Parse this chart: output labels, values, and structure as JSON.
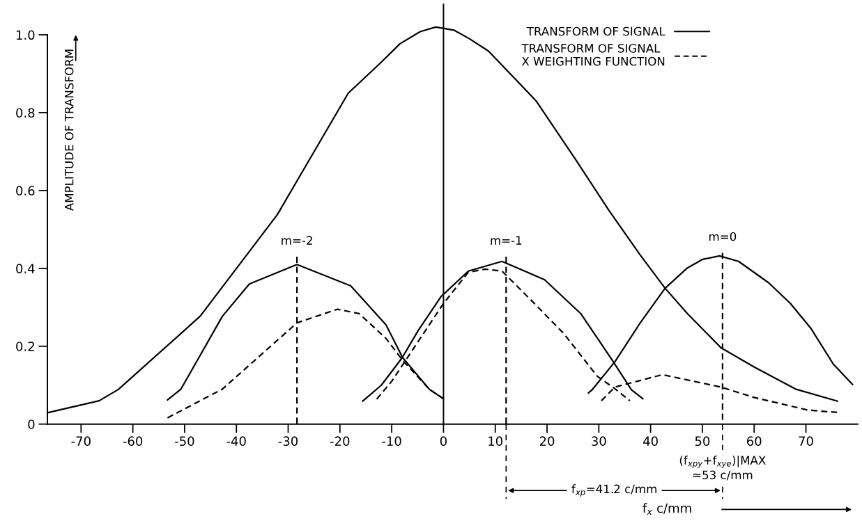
{
  "chart_data": {
    "type": "line",
    "ylabel": "AMPLITUDE OF TRANSFORM",
    "xlabel": "f$_{x}$ c/mm",
    "xlim": [
      -76.5,
      80
    ],
    "ylim": [
      0,
      1.08
    ],
    "xticks": [
      -70,
      -60,
      -50,
      -40,
      -30,
      -20,
      -10,
      0,
      10,
      20,
      30,
      40,
      50,
      60,
      70
    ],
    "yticks": [
      0,
      {
        "value": 0.2,
        "label": "0.2"
      },
      {
        "value": 0.4,
        "label": "0.4"
      },
      {
        "value": 0.6,
        "label": "0.6"
      },
      {
        "value": 0.8,
        "label": "0.8"
      },
      {
        "value": 1.0,
        "label": "1.0"
      }
    ],
    "grid": false,
    "legend": "top right",
    "marker": "none",
    "series": [
      {
        "name": "TRANSFORM OF SIGNAL",
        "color": "#000000",
        "line_style": "solid",
        "x": [
          -76.5,
          -66.5,
          -62.8,
          -47,
          -32.1,
          -18.4,
          -12,
          -8.4,
          -4.5,
          -1.5,
          2,
          5,
          8.7,
          17.9,
          25.5,
          31.9,
          37.9,
          42.8,
          47.1,
          53.6,
          60.1,
          68,
          76.1
        ],
        "values": [
          0.029,
          0.06,
          0.089,
          0.277,
          0.538,
          0.85,
          0.93,
          0.977,
          1.008,
          1.02,
          1.012,
          0.99,
          0.958,
          0.83,
          0.68,
          0.55,
          0.436,
          0.349,
          0.284,
          0.196,
          0.146,
          0.09,
          0.059
        ]
      },
      {
        "name": "TRANSFORM OF SIGNAL\nX WEIGHTING FUNCTION",
        "color": "#000000",
        "line_style": "dashed",
        "x": [
          -53.3,
          -42.7,
          -28.3,
          -20.5,
          -16.3,
          -11.1,
          -7.9,
          -2.7,
          0
        ],
        "values": [
          0.016,
          0.09,
          0.26,
          0.295,
          0.284,
          0.22,
          0.164,
          0.089,
          0.065
        ]
      },
      {
        "color": "#000000",
        "line_style": "solid",
        "x": [
          -53.3,
          -50.7,
          -42.7,
          -37.5,
          -28.3,
          -17.9,
          -11.1,
          -7.9,
          -2.7,
          0
        ],
        "values": [
          0.062,
          0.09,
          0.277,
          0.36,
          0.41,
          0.355,
          0.255,
          0.171,
          0.089,
          0.065
        ]
      },
      {
        "color": "#000000",
        "line_style": "solid",
        "x": [
          -15.6,
          -12,
          -8,
          -4.9,
          -0.5,
          4.8,
          11.3,
          19.5,
          26.5,
          32.4,
          36.3,
          38.5
        ],
        "values": [
          0.059,
          0.1,
          0.17,
          0.24,
          0.327,
          0.393,
          0.418,
          0.371,
          0.284,
          0.168,
          0.088,
          0.065
        ]
      },
      {
        "color": "#000000",
        "line_style": "dashed",
        "x": [
          -12.9,
          -10,
          -7,
          -3,
          0,
          4.8,
          8,
          11.3,
          16.8,
          23.2,
          29.7,
          33.1,
          36
        ],
        "values": [
          0.064,
          0.11,
          0.17,
          0.25,
          0.31,
          0.39,
          0.398,
          0.393,
          0.32,
          0.233,
          0.123,
          0.091,
          0.06
        ]
      },
      {
        "color": "#000000",
        "line_style": "solid",
        "x": [
          28,
          28.7,
          33.1,
          38,
          42.8,
          47,
          50,
          53.3,
          57,
          62.8,
          67,
          70.9,
          75.3,
          79
        ],
        "values": [
          0.08,
          0.088,
          0.16,
          0.26,
          0.349,
          0.4,
          0.423,
          0.432,
          0.418,
          0.363,
          0.31,
          0.247,
          0.154,
          0.102
        ]
      },
      {
        "color": "#000000",
        "line_style": "dashed",
        "x": [
          30.5,
          33.1,
          42.3,
          53.6,
          60.1,
          70.4,
          76
        ],
        "values": [
          0.06,
          0.095,
          0.127,
          0.095,
          0.068,
          0.036,
          0.03
        ]
      },
      {
        "color": "#000000",
        "line_style": "dashed",
        "x": [
          -28.3,
          -28.3
        ],
        "values": [
          0.43,
          0
        ]
      },
      {
        "color": "#000000",
        "line_style": "dashed",
        "x": [
          12.1,
          12.1
        ],
        "values": [
          0.43,
          0
        ]
      },
      {
        "color": "#000000",
        "line_style": "dashed",
        "x": [
          53.9,
          53.9
        ],
        "values": [
          0.44,
          0
        ]
      }
    ],
    "ref_lines": [
      {
        "axis": "x",
        "value": 0,
        "color": "#000000",
        "line_style": "solid"
      }
    ],
    "annotations": [
      {
        "text": "m=-2",
        "x": -28.3,
        "y": 0.43
      },
      {
        "text": "m=-1",
        "x": 12.1,
        "y": 0.43
      },
      {
        "text": "m=0",
        "x": 53.9,
        "y": 0.44
      },
      "(f$_{xpy}$+f$_{xye}$)|MAX\n≃53 c/mm",
      "f$_{xp}$=41.2 c/mm"
    ]
  }
}
